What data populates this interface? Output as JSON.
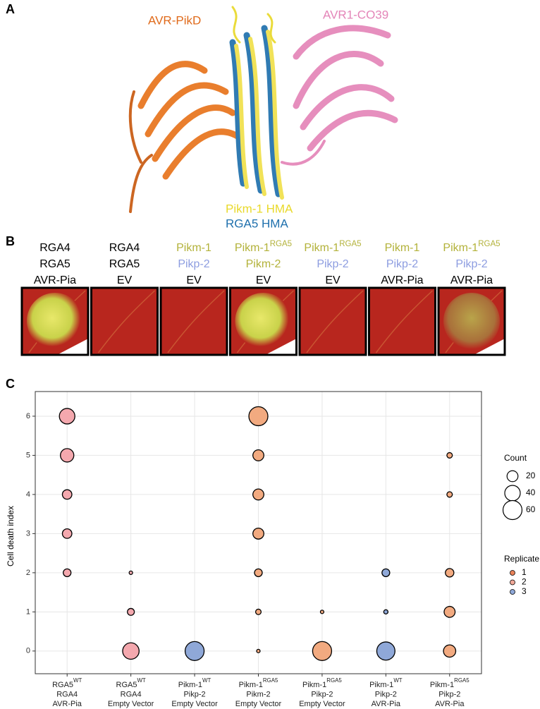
{
  "panel_labels": [
    "A",
    "B",
    "C"
  ],
  "structure_labels": [
    {
      "text": "AVR-PikD",
      "color": "#e06a1a"
    },
    {
      "text": "AVR1-CO39",
      "color": "#e485b8"
    },
    {
      "text": "Pikm-1 HMA",
      "color": "#e9d92a"
    },
    {
      "text": "RGA5 HMA",
      "color": "#1f70ad"
    }
  ],
  "leaf_panels": [
    [
      {
        "text": "RGA4",
        "color": "#000000"
      },
      {
        "text": "RGA5",
        "color": "#000000"
      },
      {
        "text": "AVR-Pia",
        "color": "#000000"
      }
    ],
    [
      {
        "text": "RGA4",
        "color": "#000000"
      },
      {
        "text": "RGA5",
        "color": "#000000"
      },
      {
        "text": "EV",
        "color": "#000000"
      }
    ],
    [
      {
        "text": "Pikm-1",
        "color": "#b3b23a"
      },
      {
        "text": "Pikp-2",
        "color": "#8d9de0"
      },
      {
        "text": "EV",
        "color": "#000000"
      }
    ],
    [
      {
        "text": "Pikm-1",
        "sup": "RGA5",
        "color": "#b3b23a"
      },
      {
        "text": "Pikm-2",
        "color": "#b3b23a"
      },
      {
        "text": "EV",
        "color": "#000000"
      }
    ],
    [
      {
        "text": "Pikm-1",
        "sup": "RGA5",
        "color": "#b3b23a"
      },
      {
        "text": "Pikp-2",
        "color": "#8d9de0"
      },
      {
        "text": "EV",
        "color": "#000000"
      }
    ],
    [
      {
        "text": "Pikm-1",
        "color": "#b3b23a"
      },
      {
        "text": "Pikp-2",
        "color": "#8d9de0"
      },
      {
        "text": "AVR-Pia",
        "color": "#000000"
      }
    ],
    [
      {
        "text": "Pikm-1",
        "sup": "RGA5",
        "color": "#b3b23a"
      },
      {
        "text": "Pikp-2",
        "color": "#8d9de0"
      },
      {
        "text": "AVR-Pia",
        "color": "#000000"
      }
    ]
  ],
  "chart_data": {
    "type": "bubble",
    "y_label": "Cell death index",
    "categories": [
      [
        {
          "text": "RGA5",
          "sup": "WT"
        },
        {
          "text": "RGA4"
        },
        {
          "text": "AVR-Pia"
        }
      ],
      [
        {
          "text": "RGA5",
          "sup": "WT"
        },
        {
          "text": "RGA4"
        },
        {
          "text": "Empty Vector"
        }
      ],
      [
        {
          "text": "Pikm-1",
          "sup": "WT"
        },
        {
          "text": "Pikp-2"
        },
        {
          "text": "Empty Vector"
        }
      ],
      [
        {
          "text": "Pikm-1",
          "sup": "RGA5"
        },
        {
          "text": "Pikm-2"
        },
        {
          "text": "Empty Vector"
        }
      ],
      [
        {
          "text": "Pikm-1",
          "sup": "RGA5"
        },
        {
          "text": "Pikp-2"
        },
        {
          "text": "Empty Vector"
        }
      ],
      [
        {
          "text": "Pikm-1",
          "sup": "WT"
        },
        {
          "text": "Pikp-2"
        },
        {
          "text": "AVR-Pia"
        }
      ],
      [
        {
          "text": "Pikm-1",
          "sup": "RGA5"
        },
        {
          "text": "Pikp-2"
        },
        {
          "text": "AVR-Pia"
        }
      ]
    ],
    "bubble_colors": [
      "#f4a8ae",
      "#f4a8ae",
      "#8fa8d8",
      "#f2aa80",
      "#f2aa80",
      "#8fa8d8",
      "#f2aa80"
    ],
    "bubbles": [
      [
        {
          "y": 6,
          "count": 40
        },
        {
          "y": 5,
          "count": 30
        },
        {
          "y": 4,
          "count": 15
        },
        {
          "y": 3,
          "count": 15
        },
        {
          "y": 2,
          "count": 10
        }
      ],
      [
        {
          "y": 2,
          "count": 2
        },
        {
          "y": 1,
          "count": 8
        },
        {
          "y": 0,
          "count": 45
        }
      ],
      [
        {
          "y": 0,
          "count": 60
        }
      ],
      [
        {
          "y": 6,
          "count": 60
        },
        {
          "y": 5,
          "count": 20
        },
        {
          "y": 4,
          "count": 20
        },
        {
          "y": 3,
          "count": 20
        },
        {
          "y": 2,
          "count": 10
        },
        {
          "y": 1,
          "count": 5
        },
        {
          "y": 0,
          "count": 2
        }
      ],
      [
        {
          "y": 1,
          "count": 2
        },
        {
          "y": 0,
          "count": 60
        }
      ],
      [
        {
          "y": 2,
          "count": 10
        },
        {
          "y": 1,
          "count": 3
        },
        {
          "y": 0,
          "count": 55
        }
      ],
      [
        {
          "y": 5,
          "count": 5
        },
        {
          "y": 4,
          "count": 5
        },
        {
          "y": 2,
          "count": 12
        },
        {
          "y": 1,
          "count": 20
        },
        {
          "y": 0,
          "count": 25
        }
      ]
    ],
    "ylim": [
      -0.58,
      6.63
    ],
    "yticks": [
      0,
      1,
      2,
      3,
      4,
      5,
      6
    ],
    "grid": true,
    "size_legend_title": "Count",
    "size_legend": [
      20,
      40,
      60
    ],
    "color_legend_title": "Replicate",
    "replicates": [
      {
        "name": "1",
        "color": "#e8825a"
      },
      {
        "name": "2",
        "color": "#f0a898"
      },
      {
        "name": "3",
        "color": "#8fa8d8"
      }
    ]
  }
}
